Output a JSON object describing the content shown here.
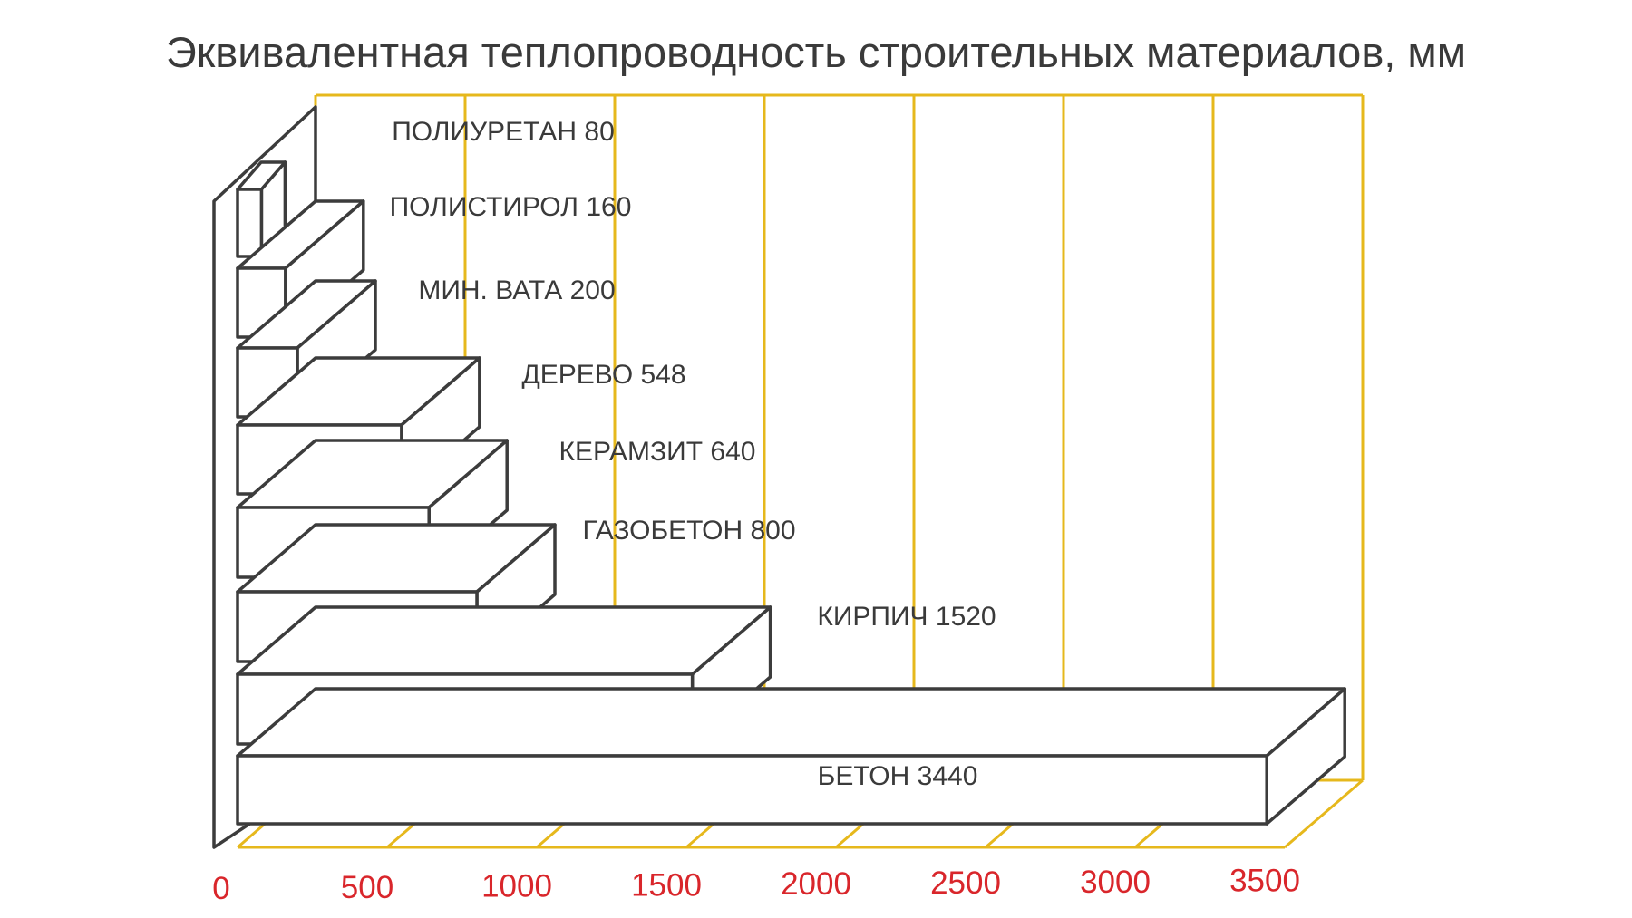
{
  "chart_data": {
    "type": "bar",
    "orientation": "horizontal",
    "title": "Эквивалентная теплопроводность строительных материалов, мм",
    "categories": [
      "ПОЛИУРЕТАН",
      "ПОЛИСТИРОЛ",
      "МИН. ВАТА",
      "ДЕРЕВО",
      "КЕРАМЗИТ",
      "ГАЗОБЕТОН",
      "КИРПИЧ",
      "БЕТОН"
    ],
    "values": [
      80,
      160,
      200,
      548,
      640,
      800,
      1520,
      3440
    ],
    "labels": [
      "ПОЛИУРЕТАН 80",
      "ПОЛИСТИРОЛ 160",
      "МИН. ВАТА 200",
      "ДЕРЕВО 548",
      "КЕРАМЗИТ 640",
      "ГАЗОБЕТОН 800",
      "КИРПИЧ 1520",
      "БЕТОН 3440"
    ],
    "xticks": [
      0,
      500,
      1000,
      1500,
      2000,
      2500,
      3000,
      3500
    ],
    "xlim": [
      0,
      3500
    ],
    "grid": true,
    "style": "3d",
    "colors": {
      "grid": "#e6b81c",
      "tick_labels": "#d9262b",
      "bars": "#ffffff",
      "outline": "#3c3c3c",
      "text": "#3a3a3a"
    }
  }
}
